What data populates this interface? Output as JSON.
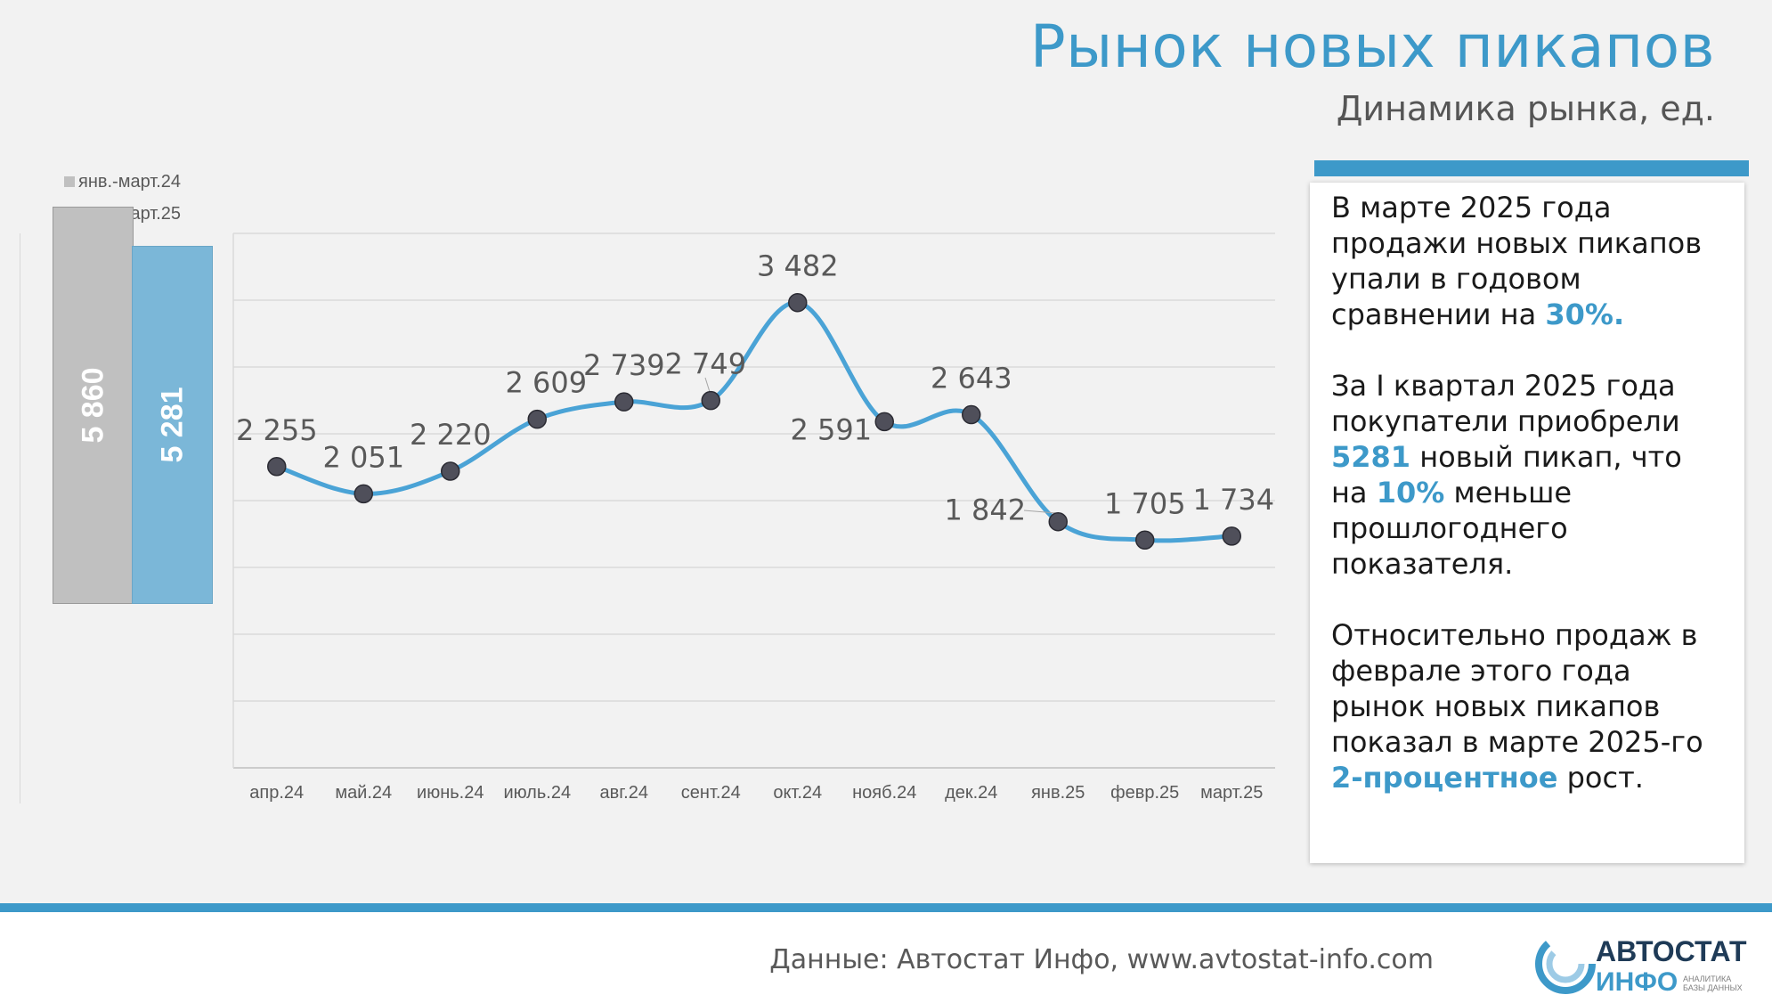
{
  "header": {
    "title": "Рынок новых пикапов",
    "subtitle": "Динамика рынка, ед."
  },
  "summary_chart": {
    "legend": [
      "янв.-март.24",
      "янв.-март.25"
    ],
    "colors": [
      "#c0c0c0",
      "#7bb7d8"
    ],
    "values": [
      5860,
      5281
    ],
    "value_labels": [
      "5 860",
      "5 281"
    ]
  },
  "chart_data": {
    "type": "line",
    "categories": [
      "апр.24",
      "май.24",
      "июнь.24",
      "июль.24",
      "авг.24",
      "сент.24",
      "окт.24",
      "нояб.24",
      "дек.24",
      "янв.25",
      "февр.25",
      "март.25"
    ],
    "values": [
      2255,
      2051,
      2220,
      2609,
      2739,
      2749,
      3482,
      2591,
      2643,
      1842,
      1705,
      1734
    ],
    "value_labels": [
      "2 255",
      "2 051",
      "2 220",
      "2 609",
      "2 739",
      "2 749",
      "3 482",
      "2 591",
      "2 643",
      "1 842",
      "1 705",
      "1 734"
    ],
    "ylim": [
      0,
      4000
    ],
    "grid": true,
    "line_color": "#4aa3d6",
    "marker_color": "#4f4f5a"
  },
  "info": {
    "p1": [
      "В марте 2025 года продажи новых пикапов упали в годовом сравнении на ",
      "30%."
    ],
    "p2": [
      "За I квартал 2025 года покупатели приобрели ",
      "5281",
      " новый пикап, что на ",
      "10%",
      " меньше прошлогоднего показателя."
    ],
    "p3": [
      "Относительно продаж в феврале этого года рынок новых пикапов показал в марте 2025-го ",
      "2-процентное",
      " рост."
    ]
  },
  "footer": {
    "source": "Данные: Автостат Инфо, www.avtostat-info.com",
    "logo_top": "АВТОСТАТ",
    "logo_bottom": "ИНФО",
    "logo_tag": [
      "АНАЛИТИКА",
      "БАЗЫ ДАННЫХ"
    ]
  }
}
